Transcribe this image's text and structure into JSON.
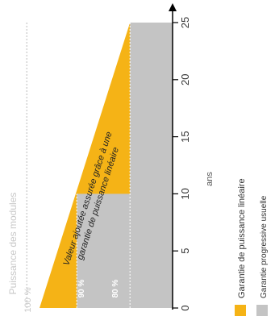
{
  "chart_data": {
    "type": "area",
    "orientation": "rotated-90",
    "ylabel": "Puissance des modules",
    "xlabel": "ans",
    "y_top_label": "100 %",
    "xlim": [
      0,
      25
    ],
    "x_ticks": [
      0,
      5,
      10,
      15,
      20,
      25
    ],
    "annotation": "Valeur ajoutée assurée grâce à une garantie de puissance linéaire",
    "series": [
      {
        "name": "Garantie de puissance linéaire",
        "color": "#f5b316",
        "points": [
          [
            0,
            97
          ],
          [
            25,
            80
          ]
        ]
      },
      {
        "name": "Garantie progressive usuelle",
        "color": "#c4c4c4",
        "points": [
          [
            0,
            90
          ],
          [
            10,
            90
          ],
          [
            10,
            80
          ],
          [
            25,
            80
          ]
        ]
      }
    ],
    "value_labels": [
      "90 %",
      "80 %"
    ],
    "legend_position": "bottom-right"
  }
}
